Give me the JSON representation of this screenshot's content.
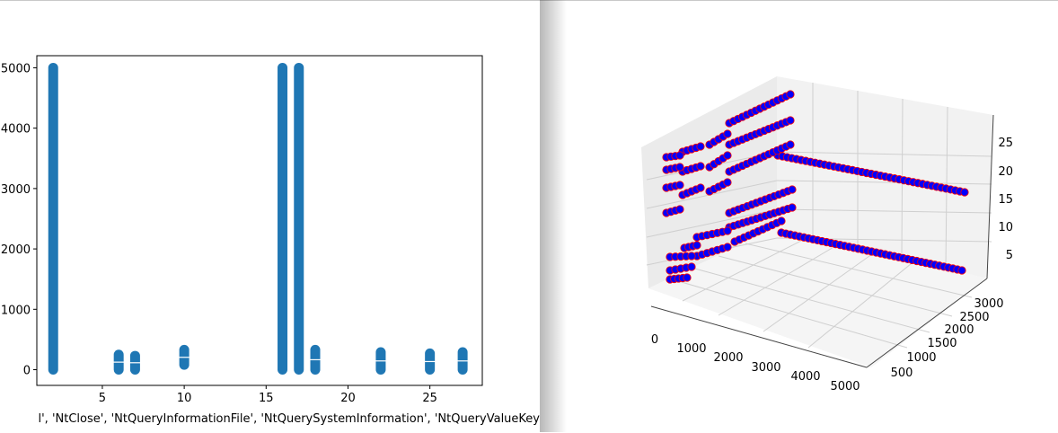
{
  "chart_data": [
    {
      "type": "scatter",
      "title": "",
      "xlabel": "l', 'NtClose', 'NtQueryInformationFile', 'NtQuerySystemInformation', 'NtQueryValueKey",
      "ylabel": "",
      "xlim": [
        1.0,
        28.2
      ],
      "ylim": [
        -260,
        5200
      ],
      "x_ticks": [
        5,
        10,
        15,
        20,
        25
      ],
      "x_tick_labels": [
        "5",
        "10",
        "15",
        "20",
        "25"
      ],
      "y_ticks": [
        0,
        1000,
        2000,
        3000,
        4000,
        5000
      ],
      "y_tick_labels": [
        "0",
        "1000",
        "2000",
        "3000",
        "4000",
        "5000"
      ],
      "grid": false,
      "marker_color": "#1f77b4",
      "series": [
        {
          "x": 2,
          "y_min": 0,
          "y_max": 5000
        },
        {
          "x": 6,
          "y_min": 0,
          "y_max": 250
        },
        {
          "x": 7,
          "y_min": 0,
          "y_max": 230
        },
        {
          "x": 10,
          "y_min": 80,
          "y_max": 330
        },
        {
          "x": 16,
          "y_min": 0,
          "y_max": 5000
        },
        {
          "x": 17,
          "y_min": 0,
          "y_max": 5000
        },
        {
          "x": 18,
          "y_min": 0,
          "y_max": 330
        },
        {
          "x": 22,
          "y_min": 0,
          "y_max": 290
        },
        {
          "x": 25,
          "y_min": 0,
          "y_max": 270
        },
        {
          "x": 27,
          "y_min": 0,
          "y_max": 290
        }
      ]
    },
    {
      "type": "scatter3d",
      "title": "",
      "x_tick_labels": [
        "0",
        "1000",
        "2000",
        "3000",
        "4000",
        "5000"
      ],
      "y_tick_labels": [
        "500",
        "1000",
        "1500",
        "2000",
        "2500",
        "3000"
      ],
      "z_tick_labels": [
        "5",
        "10",
        "15",
        "20",
        "25"
      ],
      "grid": true,
      "marker_color": "#0000ff",
      "edge_color": "#ff0000"
    }
  ]
}
